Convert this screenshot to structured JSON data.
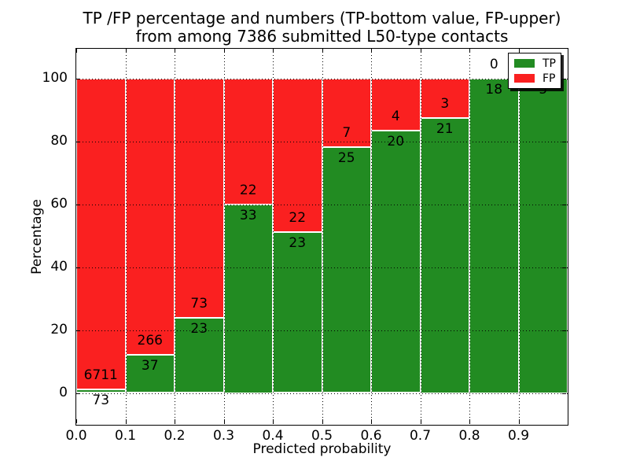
{
  "figure": {
    "title_line1": "TP /FP percentage and numbers (TP-bottom value, FP-upper)",
    "title_line2": "from among 7386 submitted L50-type contacts",
    "xlabel": "Predicted probability",
    "ylabel": "Percentage"
  },
  "legend": {
    "position": "upper right",
    "items": [
      {
        "label": "TP",
        "color": "#228B22"
      },
      {
        "label": "FP",
        "color": "#FA2020"
      }
    ]
  },
  "colors": {
    "tp": "#228B22",
    "fp": "#FA2020",
    "grid": "#000000",
    "bar_edge": "#ffffff"
  },
  "chart_data": {
    "type": "bar",
    "stacked": true,
    "normalized": "percent",
    "title": "TP /FP percentage and numbers (TP-bottom value, FP-upper) from among 7386 submitted L50-type contacts",
    "xlabel": "Predicted probability",
    "ylabel": "Percentage",
    "total_contacts": 7386,
    "grid": "dotted black, drawn over bars",
    "xlim": [
      0.0,
      1.0
    ],
    "ylim": [
      -10,
      109.5
    ],
    "yticks": [
      0,
      20,
      40,
      60,
      80,
      100
    ],
    "ytick_labels": [
      "0",
      "20",
      "40",
      "60",
      "80",
      "100"
    ],
    "xticks": [
      0.0,
      0.1,
      0.2,
      0.3,
      0.4,
      0.5,
      0.6,
      0.7,
      0.8,
      0.9
    ],
    "xtick_labels": [
      "0.0",
      "0.1",
      "0.2",
      "0.3",
      "0.4",
      "0.5",
      "0.6",
      "0.7",
      "0.8",
      "0.9"
    ],
    "series": [
      {
        "name": "TP",
        "position": "bottom",
        "color": "#228B22"
      },
      {
        "name": "FP",
        "position": "top",
        "color": "#FA2020"
      }
    ],
    "bins": [
      {
        "x_range": [
          0.0,
          0.1
        ],
        "tp": 73,
        "fp": 6711,
        "tp_pct": 1.08
      },
      {
        "x_range": [
          0.1,
          0.2
        ],
        "tp": 37,
        "fp": 266,
        "tp_pct": 12.21
      },
      {
        "x_range": [
          0.2,
          0.3
        ],
        "tp": 23,
        "fp": 73,
        "tp_pct": 23.96
      },
      {
        "x_range": [
          0.3,
          0.4
        ],
        "tp": 33,
        "fp": 22,
        "tp_pct": 60.0
      },
      {
        "x_range": [
          0.4,
          0.5
        ],
        "tp": 23,
        "fp": 22,
        "tp_pct": 51.11
      },
      {
        "x_range": [
          0.5,
          0.6
        ],
        "tp": 25,
        "fp": 7,
        "tp_pct": 78.13
      },
      {
        "x_range": [
          0.6,
          0.7
        ],
        "tp": 20,
        "fp": 4,
        "tp_pct": 83.33
      },
      {
        "x_range": [
          0.7,
          0.8
        ],
        "tp": 21,
        "fp": 3,
        "tp_pct": 87.5
      },
      {
        "x_range": [
          0.8,
          0.9
        ],
        "tp": 18,
        "fp": 0,
        "tp_pct": 100.0
      },
      {
        "x_range": [
          0.9,
          1.0
        ],
        "tp": 5,
        "fp": 0,
        "tp_pct": 100.0
      }
    ]
  }
}
